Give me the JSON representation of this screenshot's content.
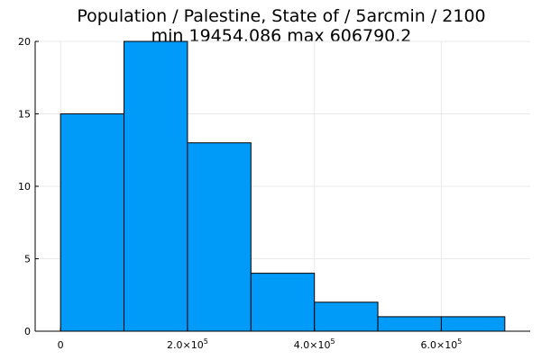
{
  "chart_data": {
    "type": "bar",
    "title_line1": "Population / Palestine, State of / 5arcmin / 2100",
    "title_line2": "min 19454.086  max 606790.2",
    "xlabel": "",
    "ylabel": "",
    "bar_color": "#009af9",
    "grid": true,
    "legend": "none",
    "xlim": [
      -40000,
      740000
    ],
    "ylim": [
      0,
      20
    ],
    "bins": [
      {
        "x0": 0,
        "x1": 100000,
        "count": 15
      },
      {
        "x0": 100000,
        "x1": 200000,
        "count": 20
      },
      {
        "x0": 200000,
        "x1": 300000,
        "count": 13
      },
      {
        "x0": 300000,
        "x1": 400000,
        "count": 4
      },
      {
        "x0": 400000,
        "x1": 500000,
        "count": 2
      },
      {
        "x0": 500000,
        "x1": 600000,
        "count": 1
      },
      {
        "x0": 600000,
        "x1": 700000,
        "count": 1
      }
    ],
    "x_ticks": [
      {
        "value": 0,
        "mantissa": "0",
        "exponent": ""
      },
      {
        "value": 200000,
        "mantissa": "2.0×10",
        "exponent": "5"
      },
      {
        "value": 400000,
        "mantissa": "4.0×10",
        "exponent": "5"
      },
      {
        "value": 600000,
        "mantissa": "6.0×10",
        "exponent": "5"
      }
    ],
    "y_ticks": [
      {
        "value": 0,
        "label": "0"
      },
      {
        "value": 5,
        "label": "5"
      },
      {
        "value": 10,
        "label": "10"
      },
      {
        "value": 15,
        "label": "15"
      },
      {
        "value": 20,
        "label": "20"
      }
    ]
  }
}
